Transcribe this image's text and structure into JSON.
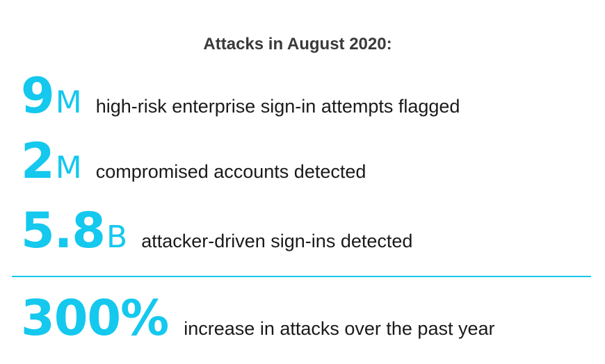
{
  "title": "Attacks in August 2020:",
  "stats": [
    {
      "number": "9",
      "unit": "M",
      "description": "high-risk enterprise sign-in attempts flagged"
    },
    {
      "number": "2",
      "unit": "M",
      "description": "compromised accounts detected"
    },
    {
      "number": "5.8",
      "unit": "B",
      "description": "attacker-driven sign-ins detected"
    },
    {
      "number": "300%",
      "unit": "",
      "description": "increase in attacks over the past year"
    }
  ],
  "colors": {
    "accent": "#14c8ee",
    "text": "#1a1a1a",
    "title": "#3a3a3a"
  }
}
